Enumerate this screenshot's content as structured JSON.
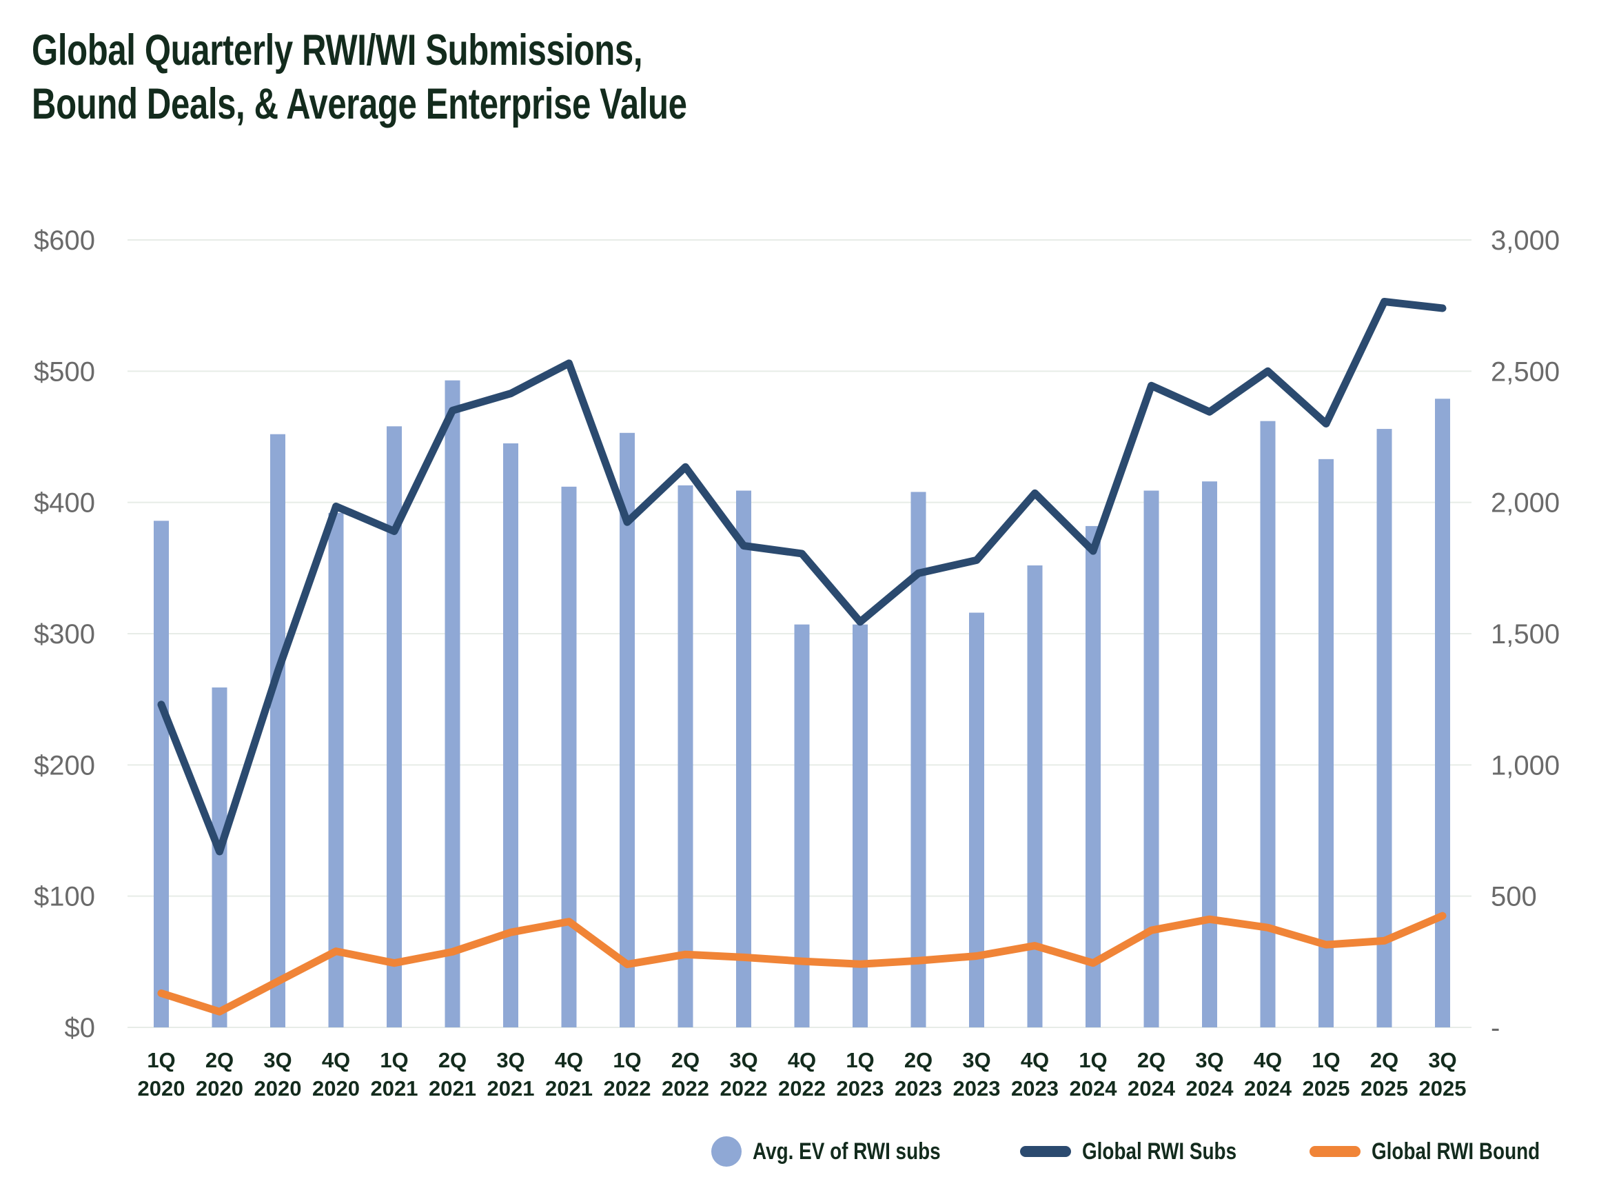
{
  "title": {
    "line1": "Global Quarterly RWI/WI Submissions,",
    "line2": "Bound Deals, & Average Enterprise Value"
  },
  "colors": {
    "bar": "#8FA8D5",
    "navy_line": "#2B4A6F",
    "orange_line": "#F08437",
    "title_text": "#132B1D",
    "axis_tick_text": "#6A6A6A",
    "x_label_text": "#132B1D",
    "gridline": "#E7ECE7",
    "background": "#FFFFFF"
  },
  "legend": {
    "items": [
      {
        "label": "Avg. EV of RWI subs",
        "swatch": "circle",
        "series": "bars"
      },
      {
        "label": "Global RWI Subs",
        "swatch": "line",
        "series": "navy"
      },
      {
        "label": "Global RWI Bound",
        "swatch": "line",
        "series": "orange"
      }
    ]
  },
  "chart_data": {
    "type": "bar",
    "subtype": "combo-bar-and-two-lines",
    "grid": true,
    "legend_position": "bottom",
    "categories": [
      {
        "q": "1Q",
        "year": "2020"
      },
      {
        "q": "2Q",
        "year": "2020"
      },
      {
        "q": "3Q",
        "year": "2020"
      },
      {
        "q": "4Q",
        "year": "2020"
      },
      {
        "q": "1Q",
        "year": "2021"
      },
      {
        "q": "2Q",
        "year": "2021"
      },
      {
        "q": "3Q",
        "year": "2021"
      },
      {
        "q": "4Q",
        "year": "2021"
      },
      {
        "q": "1Q",
        "year": "2022"
      },
      {
        "q": "2Q",
        "year": "2022"
      },
      {
        "q": "3Q",
        "year": "2022"
      },
      {
        "q": "4Q",
        "year": "2022"
      },
      {
        "q": "1Q",
        "year": "2023"
      },
      {
        "q": "2Q",
        "year": "2023"
      },
      {
        "q": "3Q",
        "year": "2023"
      },
      {
        "q": "4Q",
        "year": "2023"
      },
      {
        "q": "1Q",
        "year": "2024"
      },
      {
        "q": "2Q",
        "year": "2024"
      },
      {
        "q": "3Q",
        "year": "2024"
      },
      {
        "q": "4Q",
        "year": "2024"
      },
      {
        "q": "1Q",
        "year": "2025"
      },
      {
        "q": "2Q",
        "year": "2025"
      },
      {
        "q": "3Q",
        "year": "2025"
      }
    ],
    "series": [
      {
        "name": "Avg. EV of RWI subs",
        "type": "bar",
        "axis": "left",
        "unit": "$M",
        "values": [
          386,
          259,
          452,
          392,
          458,
          493,
          445,
          412,
          453,
          413,
          409,
          307,
          307,
          408,
          316,
          352,
          382,
          409,
          416,
          462,
          433,
          456,
          479
        ]
      },
      {
        "name": "Global RWI Subs",
        "type": "line",
        "axis": "right",
        "unit": "count",
        "values": [
          1230,
          670,
          1355,
          1985,
          1890,
          2350,
          2415,
          2530,
          1925,
          2135,
          1835,
          1805,
          1545,
          1730,
          1780,
          2035,
          1815,
          2445,
          2345,
          2500,
          2300,
          2765,
          2740
        ]
      },
      {
        "name": "Global RWI Bound",
        "type": "line",
        "axis": "right",
        "unit": "count",
        "values": [
          130,
          60,
          175,
          290,
          245,
          288,
          362,
          403,
          240,
          278,
          267,
          252,
          241,
          254,
          272,
          311,
          245,
          370,
          412,
          380,
          315,
          330,
          425
        ]
      }
    ],
    "left_axis": {
      "min": 0,
      "max": 600,
      "step": 100,
      "ticks": [
        {
          "value": 0,
          "label": "$0"
        },
        {
          "value": 100,
          "label": "$100"
        },
        {
          "value": 200,
          "label": "$200"
        },
        {
          "value": 300,
          "label": "$300"
        },
        {
          "value": 400,
          "label": "$400"
        },
        {
          "value": 500,
          "label": "$500"
        },
        {
          "value": 600,
          "label": "$600"
        }
      ]
    },
    "right_axis": {
      "min": 0,
      "max": 3000,
      "step": 500,
      "ticks": [
        {
          "value": 0,
          "label": "-"
        },
        {
          "value": 500,
          "label": "500"
        },
        {
          "value": 1000,
          "label": "1,000"
        },
        {
          "value": 1500,
          "label": "1,500"
        },
        {
          "value": 2000,
          "label": "2,000"
        },
        {
          "value": 2500,
          "label": "2,500"
        },
        {
          "value": 3000,
          "label": "3,000"
        }
      ]
    }
  }
}
